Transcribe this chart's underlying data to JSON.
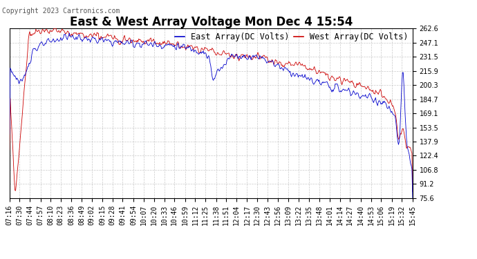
{
  "title": "East & West Array Voltage Mon Dec 4 15:54",
  "copyright": "Copyright 2023 Cartronics.com",
  "legend_east": "East Array(DC Volts)",
  "legend_west": "West Array(DC Volts)",
  "color_east": "#0000cc",
  "color_west": "#cc0000",
  "color_bg": "#ffffff",
  "color_plot_bg": "#ffffff",
  "color_grid": "#bbbbbb",
  "yticks": [
    75.6,
    91.2,
    106.8,
    122.4,
    137.9,
    153.5,
    169.1,
    184.7,
    200.3,
    215.9,
    231.5,
    247.1,
    262.6
  ],
  "ylim": [
    75.6,
    262.6
  ],
  "xtick_labels": [
    "07:16",
    "07:30",
    "07:44",
    "07:57",
    "08:10",
    "08:23",
    "08:36",
    "08:49",
    "09:02",
    "09:15",
    "09:28",
    "09:41",
    "09:54",
    "10:07",
    "10:20",
    "10:33",
    "10:46",
    "10:59",
    "11:12",
    "11:25",
    "11:38",
    "11:51",
    "12:04",
    "12:17",
    "12:30",
    "12:43",
    "12:56",
    "13:09",
    "13:22",
    "13:35",
    "13:48",
    "14:01",
    "14:14",
    "14:27",
    "14:40",
    "14:53",
    "15:06",
    "15:19",
    "15:32",
    "15:45"
  ],
  "title_fontsize": 12,
  "tick_fontsize": 7,
  "copyright_fontsize": 7,
  "legend_fontsize": 8.5
}
